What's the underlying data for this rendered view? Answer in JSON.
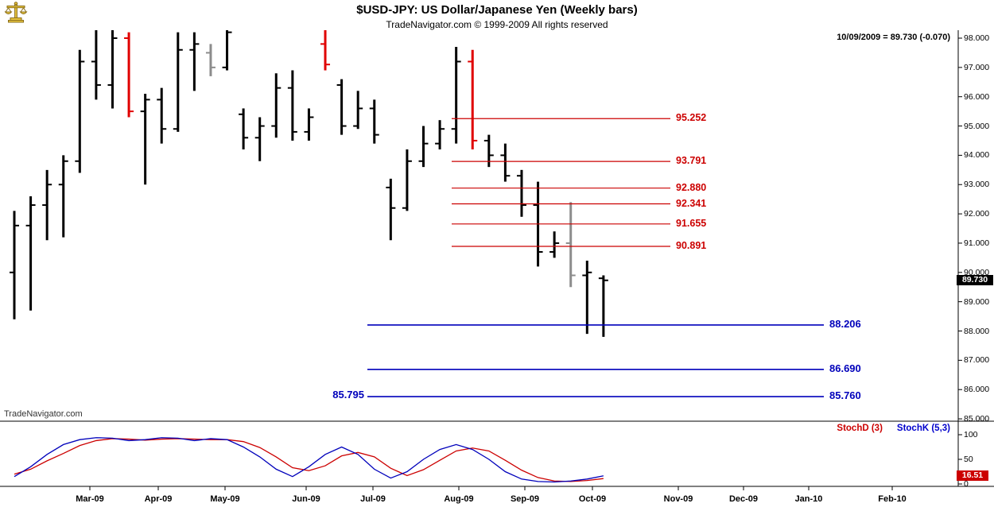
{
  "header": {
    "title": "$USD-JPY:  US Dollar/Japanese Yen  (Weekly bars)",
    "subtitle": "TradeNavigator.com © 1999-2009 All rights reserved",
    "quote_info": "10/09/2009 = 89.730 (-0.070)"
  },
  "watermark": "TradeNavigator.com",
  "price_axis": {
    "current_price": "89.730"
  },
  "stoch_panel": {
    "legend_d": "StochD (3)",
    "legend_k": "StochK (5,3)",
    "current_value": "16.51"
  },
  "colors": {
    "bar_black": "#000000",
    "bar_red": "#e00000",
    "bar_gray": "#8c8c8c",
    "level_red": "#cc0000",
    "level_blue": "#0000bb"
  },
  "chart_data": {
    "type": "bar",
    "subtype": "ohlc-weekly",
    "title": "$USD-JPY: US Dollar/Japanese Yen (Weekly bars)",
    "ylim": [
      85.0,
      98.3
    ],
    "price_ticks": [
      98,
      97,
      96,
      95,
      94,
      93,
      92,
      91,
      90,
      89,
      88,
      87,
      86,
      85
    ],
    "x_axis_months": [
      "Mar-09",
      "Apr-09",
      "May-09",
      "Jun-09",
      "Jul-09",
      "Aug-09",
      "Sep-09",
      "Oct-09",
      "Nov-09",
      "Dec-09",
      "Jan-10",
      "Feb-10"
    ],
    "bars": [
      {
        "o": 90.0,
        "h": 92.1,
        "l": 88.4,
        "c": 91.6,
        "col": "black"
      },
      {
        "o": 91.6,
        "h": 92.6,
        "l": 88.7,
        "c": 92.3,
        "col": "black"
      },
      {
        "o": 92.3,
        "h": 93.5,
        "l": 91.1,
        "c": 93.0,
        "col": "black"
      },
      {
        "o": 93.0,
        "h": 94.0,
        "l": 91.2,
        "c": 93.8,
        "col": "black"
      },
      {
        "o": 93.8,
        "h": 97.6,
        "l": 93.4,
        "c": 97.2,
        "col": "black"
      },
      {
        "o": 97.2,
        "h": 98.6,
        "l": 95.9,
        "c": 96.4,
        "col": "black"
      },
      {
        "o": 96.4,
        "h": 98.4,
        "l": 95.6,
        "c": 98.0,
        "col": "black"
      },
      {
        "o": 98.0,
        "h": 98.2,
        "l": 95.3,
        "c": 95.5,
        "col": "red"
      },
      {
        "o": 95.5,
        "h": 96.1,
        "l": 93.0,
        "c": 95.9,
        "col": "black"
      },
      {
        "o": 95.9,
        "h": 96.3,
        "l": 94.4,
        "c": 94.9,
        "col": "black"
      },
      {
        "o": 94.9,
        "h": 98.2,
        "l": 94.8,
        "c": 97.6,
        "col": "black"
      },
      {
        "o": 97.6,
        "h": 98.2,
        "l": 96.2,
        "c": 97.8,
        "col": "black"
      },
      {
        "o": 97.5,
        "h": 97.8,
        "l": 96.7,
        "c": 97.0,
        "col": "gray"
      },
      {
        "o": 97.0,
        "h": 98.5,
        "l": 96.9,
        "c": 98.2,
        "col": "black"
      },
      {
        "o": 95.4,
        "h": 95.6,
        "l": 94.2,
        "c": 94.6,
        "col": "black"
      },
      {
        "o": 94.6,
        "h": 95.3,
        "l": 93.8,
        "c": 95.0,
        "col": "black"
      },
      {
        "o": 95.0,
        "h": 96.8,
        "l": 94.6,
        "c": 96.3,
        "col": "black"
      },
      {
        "o": 96.3,
        "h": 96.9,
        "l": 94.5,
        "c": 94.8,
        "col": "black"
      },
      {
        "o": 94.8,
        "h": 95.6,
        "l": 94.5,
        "c": 95.3,
        "col": "black"
      },
      {
        "o": 97.8,
        "h": 98.4,
        "l": 96.9,
        "c": 97.1,
        "col": "red"
      },
      {
        "o": 96.4,
        "h": 96.6,
        "l": 94.7,
        "c": 95.0,
        "col": "black"
      },
      {
        "o": 95.0,
        "h": 96.2,
        "l": 94.9,
        "c": 95.6,
        "col": "black"
      },
      {
        "o": 95.6,
        "h": 95.9,
        "l": 94.4,
        "c": 94.7,
        "col": "black"
      },
      {
        "o": 92.9,
        "h": 93.2,
        "l": 91.1,
        "c": 92.2,
        "col": "black"
      },
      {
        "o": 92.2,
        "h": 94.2,
        "l": 92.1,
        "c": 93.8,
        "col": "black"
      },
      {
        "o": 93.8,
        "h": 95.0,
        "l": 93.6,
        "c": 94.4,
        "col": "black"
      },
      {
        "o": 94.4,
        "h": 95.2,
        "l": 94.2,
        "c": 94.9,
        "col": "black"
      },
      {
        "o": 94.9,
        "h": 97.7,
        "l": 94.4,
        "c": 97.2,
        "col": "black"
      },
      {
        "o": 97.2,
        "h": 97.6,
        "l": 94.2,
        "c": 94.5,
        "col": "red"
      },
      {
        "o": 94.5,
        "h": 94.7,
        "l": 93.6,
        "c": 94.0,
        "col": "black"
      },
      {
        "o": 94.0,
        "h": 94.4,
        "l": 93.1,
        "c": 93.3,
        "col": "black"
      },
      {
        "o": 93.3,
        "h": 93.5,
        "l": 91.9,
        "c": 92.3,
        "col": "black"
      },
      {
        "o": 92.3,
        "h": 93.1,
        "l": 90.2,
        "c": 90.7,
        "col": "black"
      },
      {
        "o": 90.7,
        "h": 91.4,
        "l": 90.5,
        "c": 91.0,
        "col": "black"
      },
      {
        "o": 91.0,
        "h": 92.4,
        "l": 89.5,
        "c": 89.9,
        "col": "gray"
      },
      {
        "o": 89.9,
        "h": 90.4,
        "l": 87.9,
        "c": 90.0,
        "col": "black"
      },
      {
        "o": 89.8,
        "h": 89.9,
        "l": 87.8,
        "c": 89.73,
        "col": "black"
      }
    ],
    "red_levels": [
      95.252,
      93.791,
      92.88,
      92.341,
      91.655,
      90.891
    ],
    "blue_levels": [
      88.206,
      86.69,
      85.76
    ],
    "blue_left_label": 85.795,
    "last_bar": {
      "date": "10/09/2009",
      "close": 89.73,
      "change": -0.07
    },
    "stochastics": {
      "d_label": "StochD (3)",
      "k_label": "StochK (5,3)",
      "ylim": [
        0,
        100
      ],
      "axis_ticks": [
        100,
        50,
        0
      ],
      "k": [
        15,
        35,
        60,
        80,
        90,
        94,
        93,
        88,
        90,
        94,
        93,
        88,
        92,
        90,
        75,
        55,
        30,
        15,
        35,
        60,
        75,
        60,
        30,
        12,
        25,
        50,
        70,
        80,
        70,
        50,
        25,
        10,
        5,
        4,
        6,
        10,
        16.51
      ],
      "d": [
        20,
        30,
        47,
        62,
        78,
        88,
        92,
        91,
        89,
        91,
        92,
        91,
        90,
        90,
        86,
        74,
        55,
        33,
        27,
        37,
        57,
        64,
        55,
        32,
        17,
        29,
        48,
        67,
        73,
        67,
        48,
        28,
        13,
        6,
        5,
        7,
        11
      ],
      "last": 16.51
    }
  }
}
